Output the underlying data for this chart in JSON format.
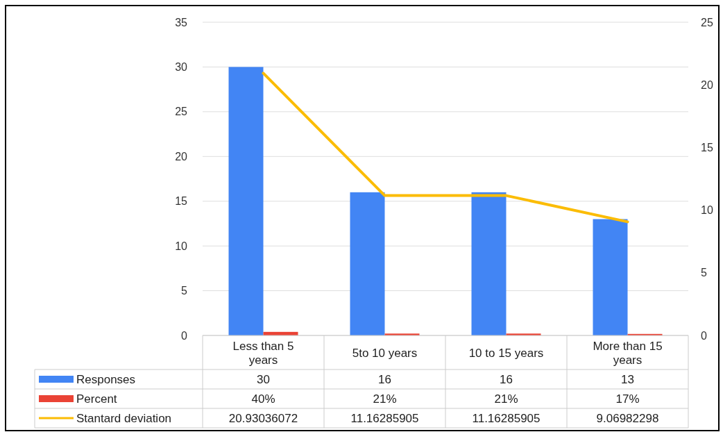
{
  "chart_data": {
    "type": "bar",
    "categories": [
      "Less than 5 years",
      "5to 10 years",
      "10 to 15 years",
      "More than 15 years"
    ],
    "series": [
      {
        "name": "Responses",
        "color": "#4285f4",
        "values": [
          30,
          16,
          16,
          13
        ],
        "value_labels": [
          "30",
          "16",
          "16",
          "13"
        ]
      },
      {
        "name": "Percent",
        "color": "#ea4335",
        "values": [
          0.4,
          0.21,
          0.21,
          0.17
        ],
        "value_labels": [
          "40%",
          "21%",
          "21%",
          "17%"
        ]
      },
      {
        "name": "Stantard deviation",
        "type": "line",
        "axis": "y2",
        "color": "#fbbc04",
        "values": [
          20.93036072,
          11.16285905,
          11.16285905,
          9.06982298
        ],
        "value_labels": [
          "20.93036072",
          "11.16285905",
          "11.16285905",
          "9.06982298"
        ]
      }
    ],
    "ylim": [
      0,
      35
    ],
    "yticks": [
      0,
      5,
      10,
      15,
      20,
      25,
      30,
      35
    ],
    "y2lim": [
      0,
      25
    ],
    "y2ticks": [
      0,
      5,
      10,
      15,
      20,
      25
    ],
    "grid": "y",
    "legend": "bottom"
  }
}
